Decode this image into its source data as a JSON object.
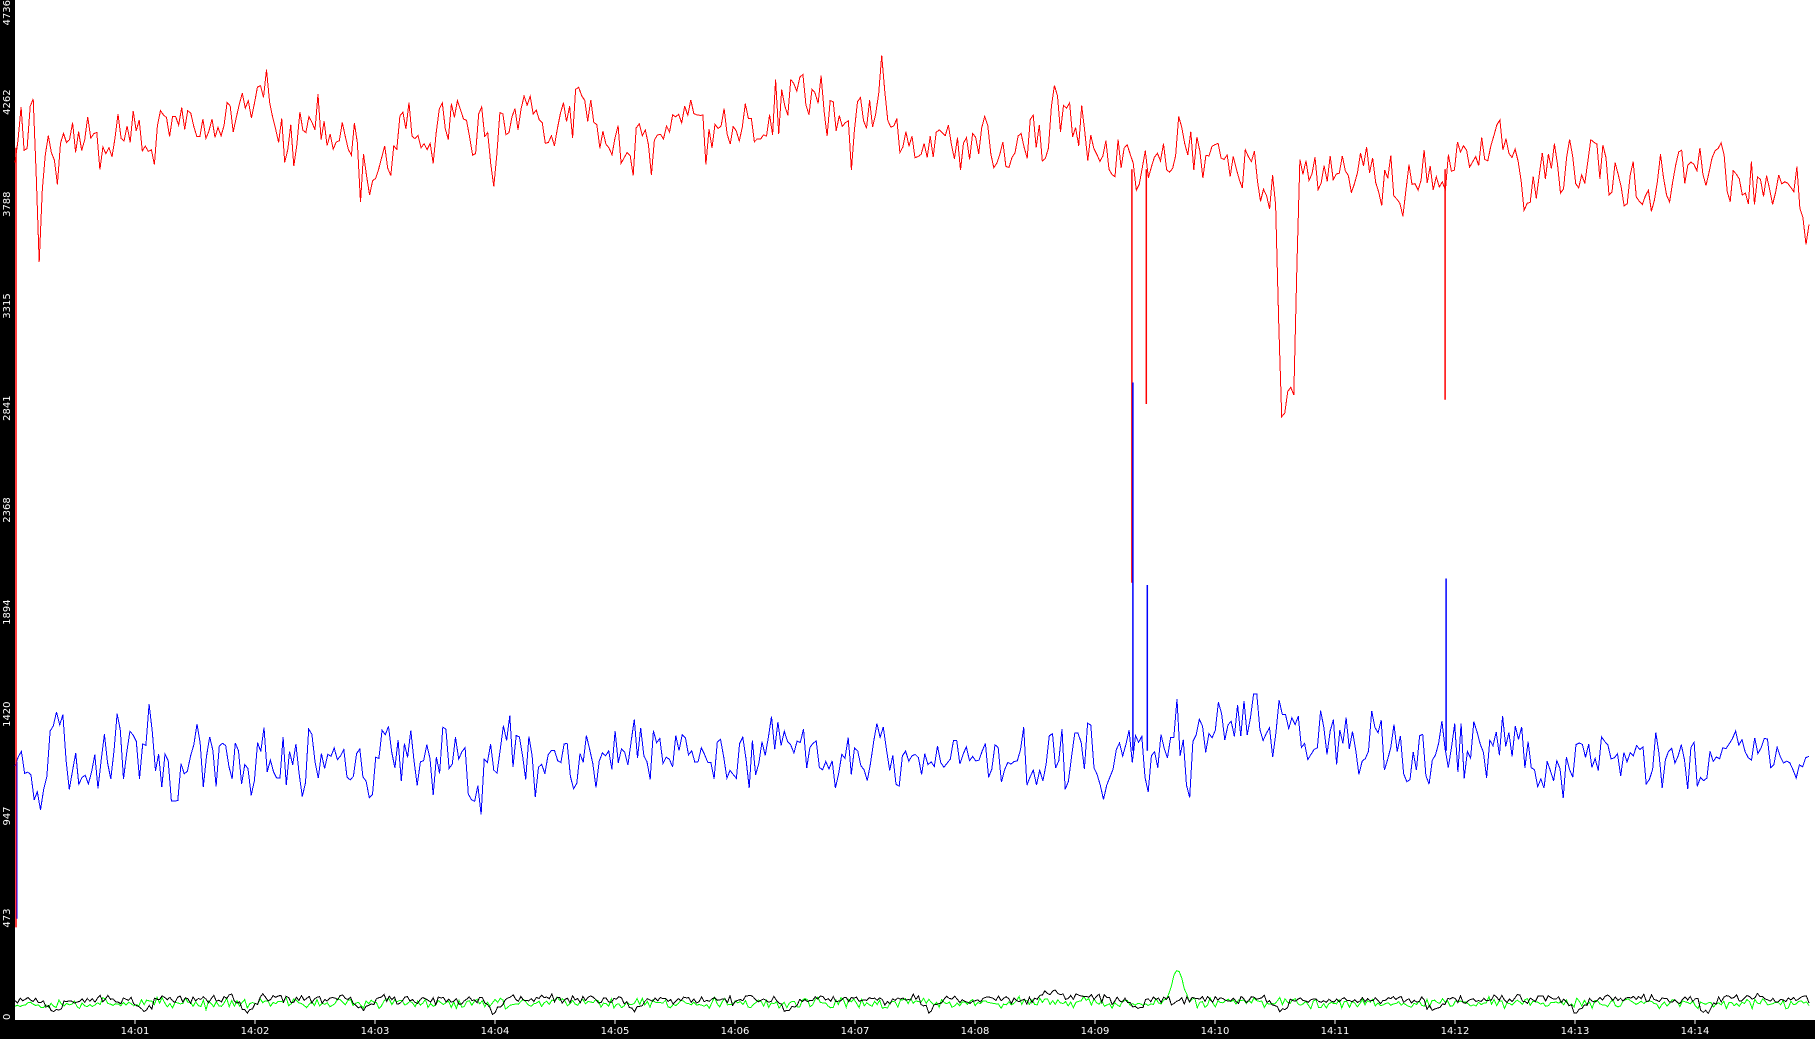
{
  "chart_data": {
    "type": "line",
    "title": "",
    "xlabel": "",
    "ylabel": "",
    "ylim": [
      0,
      4736
    ],
    "grid": false,
    "legend": "none",
    "y_ticks": [
      "0",
      "473",
      "947",
      "1420",
      "1894",
      "2368",
      "2841",
      "3315",
      "3788",
      "4262",
      "4736"
    ],
    "x_ticks": [
      "14:01",
      "14:02",
      "14:03",
      "14:04",
      "14:05",
      "14:06",
      "14:07",
      "14:08",
      "14:09",
      "14:10",
      "14:11",
      "14:12",
      "14:13",
      "14:14"
    ],
    "x_start": "14:00",
    "x_end": "14:15",
    "series": [
      {
        "color": "#ff0000",
        "values": [
          4020,
          4180,
          4100,
          4300,
          3540,
          4110,
          4050,
          3920,
          4070,
          4150,
          4090,
          4010,
          4180,
          4120,
          4060,
          4090,
          4100,
          4160,
          4150,
          4180,
          4170,
          4090,
          4000,
          4030,
          4120,
          4170,
          4220,
          4160,
          4130,
          4180,
          4140,
          4160,
          4050,
          4110,
          4120,
          4260,
          4170,
          4210,
          4260,
          4180,
          4290,
          4250,
          4310,
          4210,
          4100,
          4080,
          4030,
          4210,
          4140,
          4170,
          4180,
          4130,
          4080,
          4000,
          4120,
          4040,
          4110,
          3910,
          3840,
          3900,
          3960,
          4030,
          4020,
          4010,
          4170,
          4190,
          4070,
          4060,
          3950,
          4000,
          4220,
          4200,
          4200,
          4150,
          4140,
          4090,
          4050,
          4170,
          4080,
          3920,
          4160,
          4160,
          4230,
          4260,
          4210,
          4230,
          4230,
          4210,
          4030,
          4080,
          4120,
          4140,
          4200,
          4320,
          4240,
          4190,
          4110,
          4110,
          4040,
          4070,
          4000,
          3900,
          3940,
          4190,
          4150,
          3940,
          4140,
          4110,
          4190,
          4190,
          4220,
          4300,
          4180,
          4140,
          4040,
          4120,
          4090,
          4170,
          4080,
          4150,
          4130,
          4180,
          4120,
          4090,
          4150,
          4240,
          4200,
          4250,
          4280,
          4340,
          4320,
          4270,
          4290,
          4290,
          4200,
          4230,
          4150,
          4180,
          4070,
          4160,
          4150,
          4240,
          4210,
          4340,
          4170,
          4100,
          4110,
          4120,
          4110,
          4010,
          4020,
          4060,
          4100,
          4050,
          4080,
          4060,
          4060,
          4030,
          4090,
          4010,
          4120,
          4090,
          4020,
          4010,
          3960,
          3990,
          4090,
          4110,
          4150,
          4020,
          4010,
          4210,
          4260,
          4200,
          4180,
          4080,
          4150,
          4100,
          4020,
          4020,
          4020,
          3920,
          4010,
          3970,
          4010,
          3900,
          3960,
          3960,
          4020,
          4000,
          3960,
          4070,
          4120,
          4080,
          4080,
          4070,
          3970,
          4040,
          4050,
          4020,
          3970,
          4030,
          3940,
          3960,
          3980,
          3900,
          3790,
          3790,
          3810,
          2780,
          2960,
          2980,
          3950,
          3990,
          3890,
          3950,
          3950,
          3900,
          3950,
          3940,
          3960,
          3890,
          3950,
          4000,
          3960,
          3890,
          3900,
          3910,
          3820,
          3830,
          3880,
          3880,
          3910,
          3910,
          3920,
          3830,
          3850,
          3950,
          4070,
          4030,
          4020,
          4000,
          3980,
          4050,
          4080,
          4040,
          4080,
          3970,
          4000,
          3880,
          3870,
          3870,
          3980,
          4020,
          4010,
          3840,
          3970,
          4090,
          3790,
          3920,
          4100,
          4000,
          3920,
          3870,
          3910,
          3880,
          3870,
          3920,
          3800,
          3880,
          3870,
          3940,
          3960,
          3890,
          4000,
          4000,
          4020,
          3970,
          4000,
          3910,
          4030,
          4030,
          3990,
          3890,
          3830,
          3860,
          3910,
          3860,
          3930,
          3840,
          3830,
          3860,
          3850,
          3810,
          3850,
          3730,
          3660
        ]
      },
      {
        "color": "#0000ff",
        "values": [
          1230,
          1180,
          1250,
          1150,
          1050,
          1150,
          1320,
          1450,
          1200,
          1180,
          1200,
          1070,
          1250,
          1170,
          1300,
          1250,
          1330,
          1240,
          1360,
          1240,
          1300,
          1380,
          1210,
          1240,
          1200,
          1120,
          1130,
          1210,
          1270,
          1250,
          1240,
          1260,
          1180,
          1220,
          1140,
          1190,
          1190,
          1160,
          1230,
          1220,
          1190,
          1190,
          1210,
          1190,
          1220,
          1080,
          1180,
          1280,
          1230,
          1230,
          1300,
          1280,
          1180,
          1150,
          1270,
          1150,
          1100,
          1230,
          1350,
          1260,
          1150,
          1140,
          1220,
          1100,
          1230,
          1190,
          1130,
          1260,
          1240,
          1280,
          1230,
          1200,
          1080,
          1120,
          1250,
          1140,
          1230,
          1300,
          1280,
          1270,
          1200,
          1210,
          1200,
          1190,
          1260,
          1220,
          1260,
          1240,
          1200,
          1230,
          1240,
          1140,
          1210,
          1200,
          1280,
          1250,
          1240,
          1280,
          1250,
          1180,
          1300,
          1260,
          1250,
          1270,
          1250,
          1320,
          1290,
          1200,
          1190,
          1180,
          1340,
          1280,
          1160,
          1200,
          1260,
          1240,
          1160,
          1230,
          1260,
          1290,
          1260,
          1210,
          1280,
          1260,
          1170,
          1300,
          1220,
          1160,
          1180,
          1220,
          1240,
          1180,
          1270,
          1300,
          1210,
          1280,
          1230,
          1150,
          1180,
          1150,
          1290,
          1160,
          1210,
          1200,
          1150,
          1200,
          1200,
          1210,
          1150,
          1200,
          1290,
          1130,
          1240,
          1220,
          1210,
          1210,
          1200,
          1180,
          1230,
          1170,
          1210,
          1180,
          1210,
          1240,
          1210,
          1100,
          1330,
          1340,
          1240,
          1210,
          1130,
          1090,
          1200,
          1250,
          1300,
          1280,
          1190,
          1170,
          1140,
          1290,
          1260,
          1260,
          1320,
          1230,
          1180,
          1410,
          1300,
          1250,
          1390,
          1390,
          1380,
          1330,
          1420,
          1330,
          1390,
          1370,
          1360,
          1360,
          1340,
          1410,
          1330,
          1340,
          1310,
          1370,
          1320,
          1320,
          1310,
          1260,
          1230,
          1270,
          1230,
          1180,
          1280,
          1310,
          1260,
          1210,
          1230,
          1220,
          1200,
          1180,
          1280,
          1190,
          1190,
          1270,
          1230,
          1210,
          1260,
          1190,
          1260,
          1250,
          1140,
          1210,
          1310,
          1350,
          1300,
          1310,
          1290,
          1270,
          1180,
          1150,
          1200,
          1160,
          1180,
          1120,
          1220,
          1240,
          1230,
          1190,
          1140,
          1210,
          1260,
          1200,
          1210,
          1230,
          1240,
          1260,
          1140,
          1230,
          1240,
          1180,
          1240,
          1250,
          1160,
          1170,
          1160,
          1190,
          1230,
          1210,
          1310,
          1310,
          1280,
          1200,
          1200,
          1290,
          1230,
          1240,
          1180,
          1210,
          1200,
          1180,
          1140,
          1160
        ]
      },
      {
        "color": "#00ff00",
        "values": [
          75,
          78,
          72,
          85,
          80,
          68,
          79,
          84,
          90,
          74,
          77,
          81,
          69,
          88,
          76,
          73,
          82,
          79,
          71,
          86,
          74,
          80,
          77,
          83,
          70,
          79,
          85,
          76,
          72,
          88,
          81,
          74,
          78,
          90,
          73,
          80,
          76,
          84,
          71,
          79,
          82,
          75,
          88,
          73,
          77,
          80,
          85,
          72,
          78,
          83,
          76,
          74,
          89,
          71,
          80,
          78,
          84,
          73,
          77,
          81,
          75,
          86,
          79,
          72,
          80,
          78,
          83,
          74,
          76,
          88,
          79,
          71,
          82,
          77,
          75,
          84,
          80,
          73,
          90,
          76,
          78,
          81,
          74,
          85,
          79,
          72,
          77,
          83,
          80,
          75,
          250,
          78,
          86,
          73,
          79,
          82,
          76,
          74,
          88,
          80,
          77,
          71,
          84,
          79,
          75,
          81,
          78,
          86,
          73,
          80,
          77,
          82,
          74,
          79,
          85,
          76,
          72,
          88,
          80,
          78,
          74,
          83,
          77,
          81,
          75,
          86,
          79,
          72,
          80,
          78,
          84,
          73,
          77,
          81,
          76,
          74,
          89,
          71,
          80,
          78
        ]
      },
      {
        "color": "#000000",
        "values": [
          95,
          98,
          92,
          40,
          97,
          94,
          100,
          96,
          93,
          99,
          41,
          95,
          98,
          94,
          97,
          92,
          99,
          96,
          38,
          95,
          97,
          93,
          99,
          96,
          94,
          100,
          97,
          40,
          95,
          98,
          93,
          96,
          99,
          94,
          97,
          92,
          98,
          42,
          95,
          97,
          94,
          99,
          96,
          93,
          98,
          95,
          100,
          97,
          40,
          94,
          97,
          92,
          99,
          95,
          98,
          96,
          93,
          99,
          97,
          94,
          41,
          96,
          98,
          95,
          92,
          99,
          97,
          94,
          96,
          100,
          97,
          40,
          95,
          98,
          93,
          96,
          99,
          94,
          97,
          92,
          130,
          120,
          98,
          115,
          110,
          94,
          97,
          42,
          95,
          97,
          94,
          99,
          96,
          93,
          98,
          95,
          100,
          97,
          40,
          94,
          97,
          92,
          99,
          95,
          98,
          96,
          93,
          99,
          97,
          94,
          41,
          96,
          98,
          95,
          92,
          99,
          97,
          94,
          96,
          100,
          97,
          40,
          95,
          98,
          93,
          96,
          99,
          94,
          97,
          92,
          98,
          42,
          95,
          97,
          94,
          99,
          96,
          93,
          98,
          95
        ]
      }
    ],
    "spikes": [
      {
        "x_frac": 0.6205,
        "red_to": 2030,
        "blue_to": 2960
      },
      {
        "x_frac": 0.6285,
        "red_to": 2860,
        "blue_to": 2020
      },
      {
        "x_frac": 0.7945,
        "red_to": 2880,
        "blue_to": 2050
      }
    ]
  }
}
